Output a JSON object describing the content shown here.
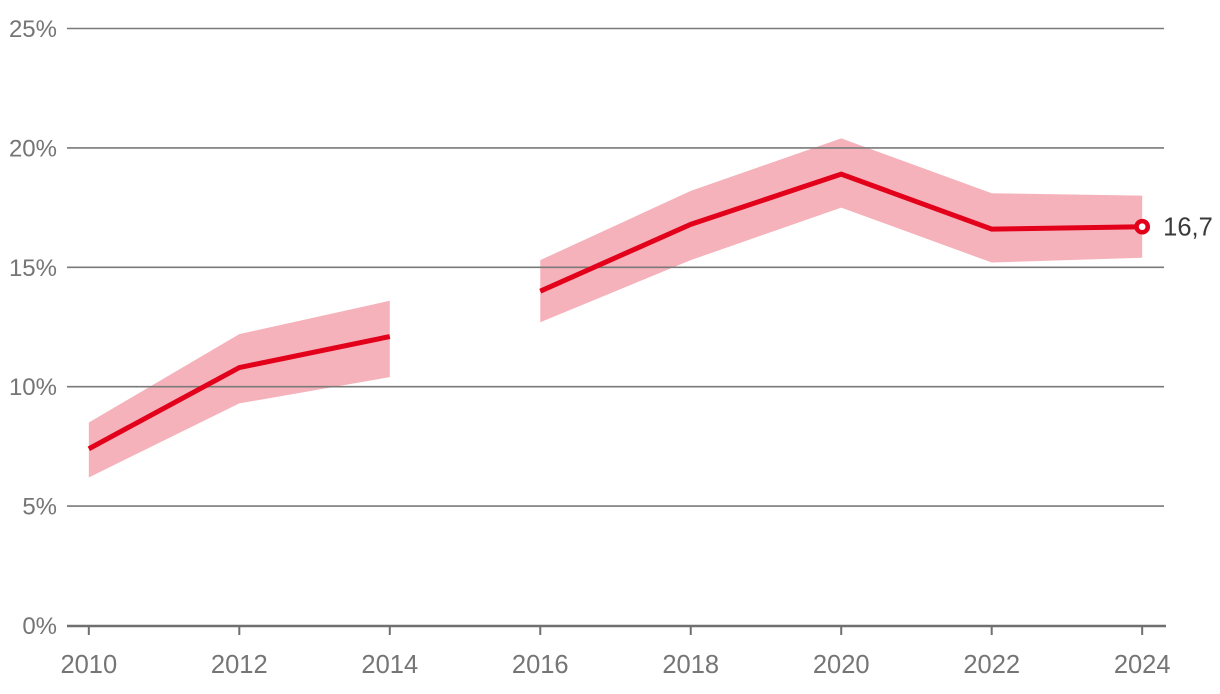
{
  "chart_data": {
    "type": "line",
    "title": "",
    "xlabel": "",
    "ylabel": "",
    "grid": "horizontal",
    "legend": "none",
    "xlim": [
      2009.71,
      2024.29
    ],
    "ylim": [
      0,
      25
    ],
    "x_ticks": [
      2010,
      2012,
      2014,
      2016,
      2018,
      2020,
      2022,
      2024
    ],
    "x_tick_labels": [
      "2010",
      "2012",
      "2014",
      "2016",
      "2018",
      "2020",
      "2022",
      "2024"
    ],
    "y_ticks": [
      0,
      5,
      10,
      15,
      20,
      25
    ],
    "y_tick_labels": [
      "0%",
      "5%",
      "10%",
      "15%",
      "20%",
      "25%"
    ],
    "series": [
      {
        "name": "share-with-confidence-interval",
        "type": "line_with_confidence_band",
        "segments": [
          {
            "x": [
              2010,
              2012,
              2014
            ],
            "y": [
              7.4,
              10.8,
              12.1
            ],
            "ci_upper": [
              8.5,
              12.2,
              13.6
            ],
            "ci_lower": [
              6.2,
              9.3,
              10.4
            ]
          },
          {
            "x": [
              2016,
              2018,
              2020,
              2022,
              2024
            ],
            "y": [
              14.0,
              16.8,
              18.9,
              16.6,
              16.7
            ],
            "ci_upper": [
              15.3,
              18.2,
              20.4,
              18.1,
              18.0
            ],
            "ci_lower": [
              12.7,
              15.3,
              17.5,
              15.2,
              15.4
            ]
          }
        ]
      }
    ],
    "end_point": {
      "x": 2024,
      "y": 16.7,
      "label": "16,7",
      "marker": "open-circle"
    },
    "colors": {
      "line": "#e2001a",
      "band": "#f5b2bb",
      "grid": "#7a7a7a",
      "axis": "#6f6f6f",
      "tick_text": "#757575",
      "end_label_text": "#3a3a3a",
      "background": "#ffffff"
    }
  }
}
